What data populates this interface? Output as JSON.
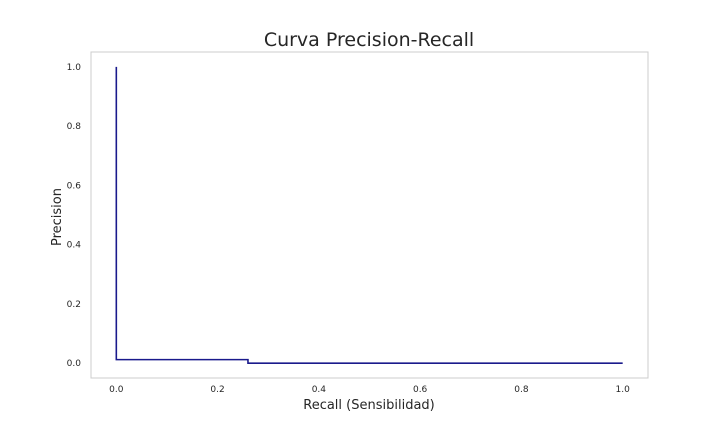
{
  "chart_data": {
    "type": "line",
    "title": "Curva Precision-Recall",
    "xlabel": "Recall (Sensibilidad)",
    "ylabel": "Precision",
    "xlim": [
      -0.05,
      1.05
    ],
    "ylim": [
      -0.05,
      1.05
    ],
    "xticks": [
      "0.0",
      "0.2",
      "0.4",
      "0.6",
      "0.8",
      "1.0"
    ],
    "yticks": [
      "0.0",
      "0.2",
      "0.4",
      "0.6",
      "0.8",
      "1.0"
    ],
    "grid": false,
    "legend": "none",
    "step": "post",
    "colors": {
      "line": "#1a1a8c",
      "frame": "#cccccc",
      "background": "#ffffff"
    },
    "series": [
      {
        "x": [
          0.0,
          0.0,
          0.0,
          0.26,
          0.26,
          1.0
        ],
        "y": [
          1.0,
          0.012,
          0.012,
          0.012,
          0.0,
          0.0
        ]
      }
    ]
  }
}
